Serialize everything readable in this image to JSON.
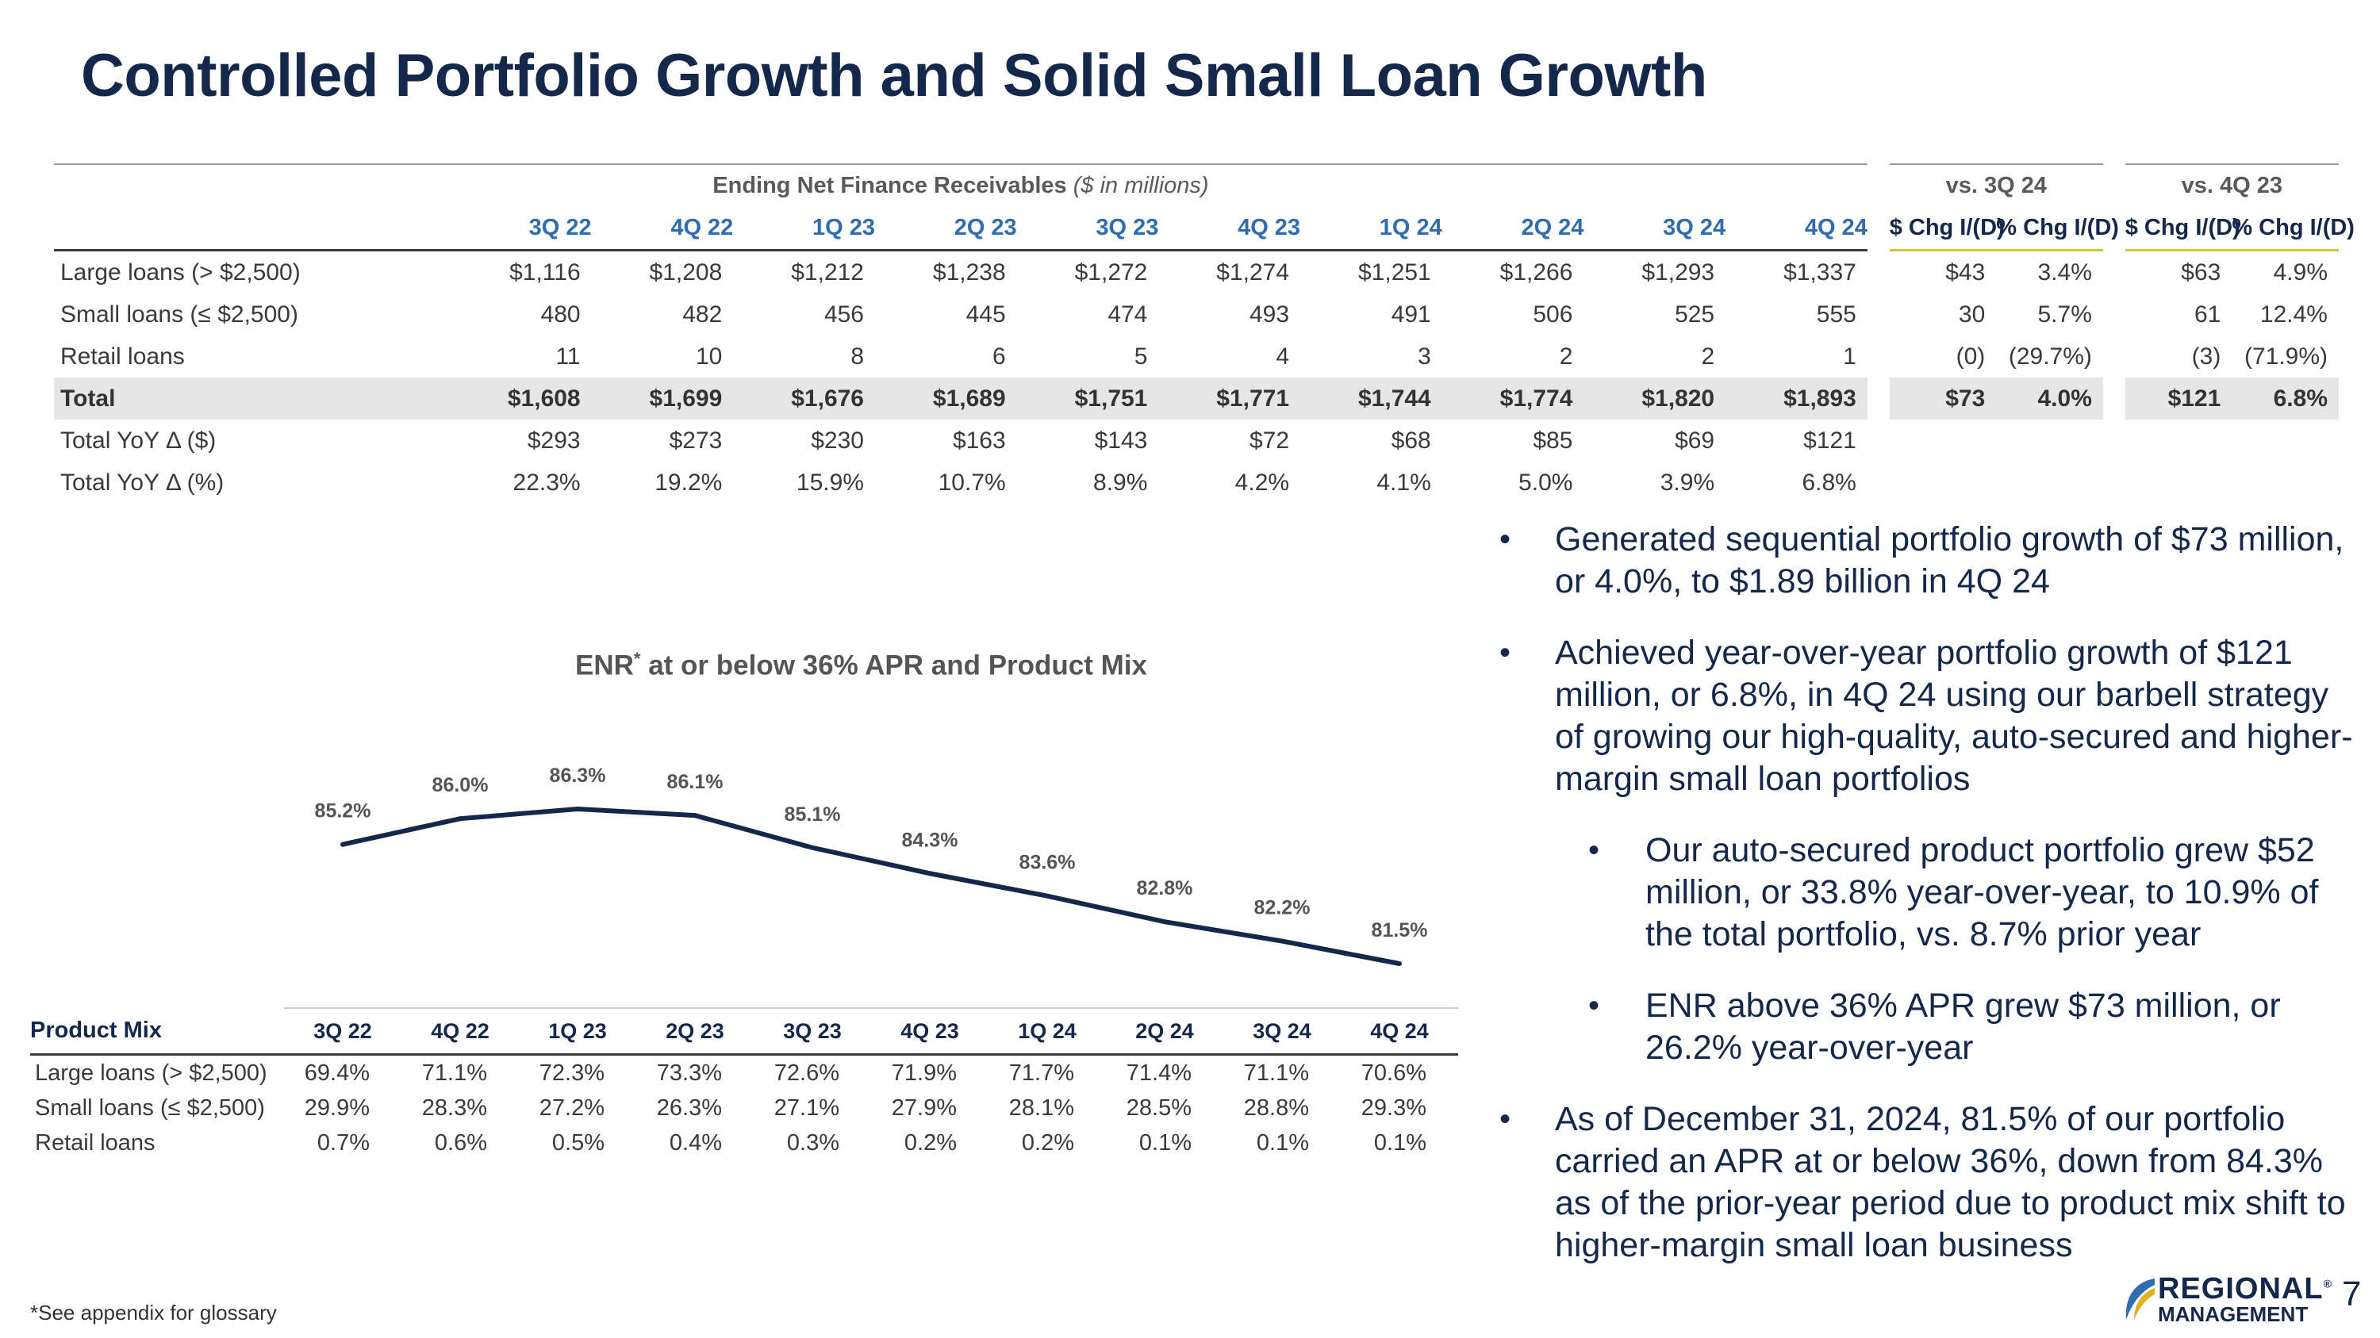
{
  "title": "Controlled Portfolio Growth and Solid Small Loan Growth",
  "enr_table": {
    "group_title_bold": "Ending Net Finance Receivables",
    "group_title_italic": "($ in millions)",
    "vs_3q24": "vs. 3Q 24",
    "vs_4q23": "vs. 4Q 23",
    "periods": [
      "3Q 22",
      "4Q 22",
      "1Q 23",
      "2Q 23",
      "3Q 23",
      "4Q 23",
      "1Q 24",
      "2Q 24",
      "3Q 24",
      "4Q 24"
    ],
    "chg_headers": [
      "$ Chg I/(D)",
      "% Chg I/(D)",
      "$ Chg I/(D)",
      "% Chg I/(D)"
    ],
    "rows": [
      {
        "label": "Large loans (> $2,500)",
        "values": [
          "$1,116",
          "$1,208",
          "$1,212",
          "$1,238",
          "$1,272",
          "$1,274",
          "$1,251",
          "$1,266",
          "$1,293",
          "$1,337"
        ],
        "chg": [
          "$43",
          "3.4%",
          "$63",
          "4.9%"
        ]
      },
      {
        "label": "Small loans (≤ $2,500)",
        "values": [
          "480",
          "482",
          "456",
          "445",
          "474",
          "493",
          "491",
          "506",
          "525",
          "555"
        ],
        "chg": [
          "30",
          "5.7%",
          "61",
          "12.4%"
        ]
      },
      {
        "label": "Retail loans",
        "values": [
          "11",
          "10",
          "8",
          "6",
          "5",
          "4",
          "3",
          "2",
          "2",
          "1"
        ],
        "chg": [
          "(0)",
          "(29.7%)",
          "(3)",
          "(71.9%)"
        ]
      },
      {
        "label": "Total",
        "values": [
          "$1,608",
          "$1,699",
          "$1,676",
          "$1,689",
          "$1,751",
          "$1,771",
          "$1,744",
          "$1,774",
          "$1,820",
          "$1,893"
        ],
        "chg": [
          "$73",
          "4.0%",
          "$121",
          "6.8%"
        ]
      },
      {
        "label": "Total YoY Δ ($)",
        "values": [
          "$293",
          "$273",
          "$230",
          "$163",
          "$143",
          "$72",
          "$68",
          "$85",
          "$69",
          "$121"
        ]
      },
      {
        "label": "Total YoY Δ (%)",
        "values": [
          "22.3%",
          "19.2%",
          "15.9%",
          "10.7%",
          "8.9%",
          "4.2%",
          "4.1%",
          "5.0%",
          "3.9%",
          "6.8%"
        ]
      }
    ]
  },
  "chart_title": "ENR",
  "chart_title_sup": "*",
  "chart_title_rest": " at or below 36% APR and Product Mix",
  "chart_data": {
    "type": "line",
    "title": "ENR* at or below 36% APR and Product Mix",
    "categories": [
      "3Q 22",
      "4Q 22",
      "1Q 23",
      "2Q 23",
      "3Q 23",
      "4Q 23",
      "1Q 24",
      "2Q 24",
      "3Q 24",
      "4Q 24"
    ],
    "series": [
      {
        "name": "ENR at or below 36% APR",
        "values": [
          85.2,
          86.0,
          86.3,
          86.1,
          85.1,
          84.3,
          83.6,
          82.8,
          82.2,
          81.5
        ]
      }
    ],
    "data_labels": [
      "85.2%",
      "86.0%",
      "86.3%",
      "86.1%",
      "85.1%",
      "84.3%",
      "83.6%",
      "82.8%",
      "82.2%",
      "81.5%"
    ],
    "ylim": [
      76,
      90
    ],
    "line_color": "#14284b"
  },
  "product_mix": {
    "heading": "Product Mix",
    "rows": [
      {
        "label": "Large loans (> $2,500)",
        "values": [
          "69.4%",
          "71.1%",
          "72.3%",
          "73.3%",
          "72.6%",
          "71.9%",
          "71.7%",
          "71.4%",
          "71.1%",
          "70.6%"
        ]
      },
      {
        "label": "Small loans (≤ $2,500)",
        "values": [
          "29.9%",
          "28.3%",
          "27.2%",
          "26.3%",
          "27.1%",
          "27.9%",
          "28.1%",
          "28.5%",
          "28.8%",
          "29.3%"
        ]
      },
      {
        "label": "Retail loans",
        "values": [
          "0.7%",
          "0.6%",
          "0.5%",
          "0.4%",
          "0.3%",
          "0.2%",
          "0.2%",
          "0.1%",
          "0.1%",
          "0.1%"
        ]
      }
    ]
  },
  "bullets": [
    {
      "text": "Generated sequential portfolio growth of $73 million, or 4.0%, to $1.89 billion in 4Q 24",
      "level": 1
    },
    {
      "text": "Achieved year-over-year portfolio growth of $121 million, or 6.8%, in 4Q 24 using our barbell strategy of growing our high-quality, auto-secured and higher-margin small loan portfolios",
      "level": 1
    },
    {
      "text": "Our auto-secured product portfolio grew $52 million, or 33.8% year-over-year, to 10.9% of the total portfolio, vs. 8.7% prior year",
      "level": 2
    },
    {
      "text": "ENR above 36% APR grew $73 million, or 26.2% year-over-year",
      "level": 2
    },
    {
      "text": "As of December 31, 2024, 81.5% of our portfolio carried an APR at or below 36%, down from 84.3% as of the prior-year period due to product mix shift to higher-margin small loan business",
      "level": 1
    }
  ],
  "bullet_glyph": "•",
  "footnote": "*See appendix for glossary",
  "logo": {
    "top": "REGIONAL",
    "bottom": "MANAGEMENT",
    "mark": "®"
  },
  "page_number": "7"
}
